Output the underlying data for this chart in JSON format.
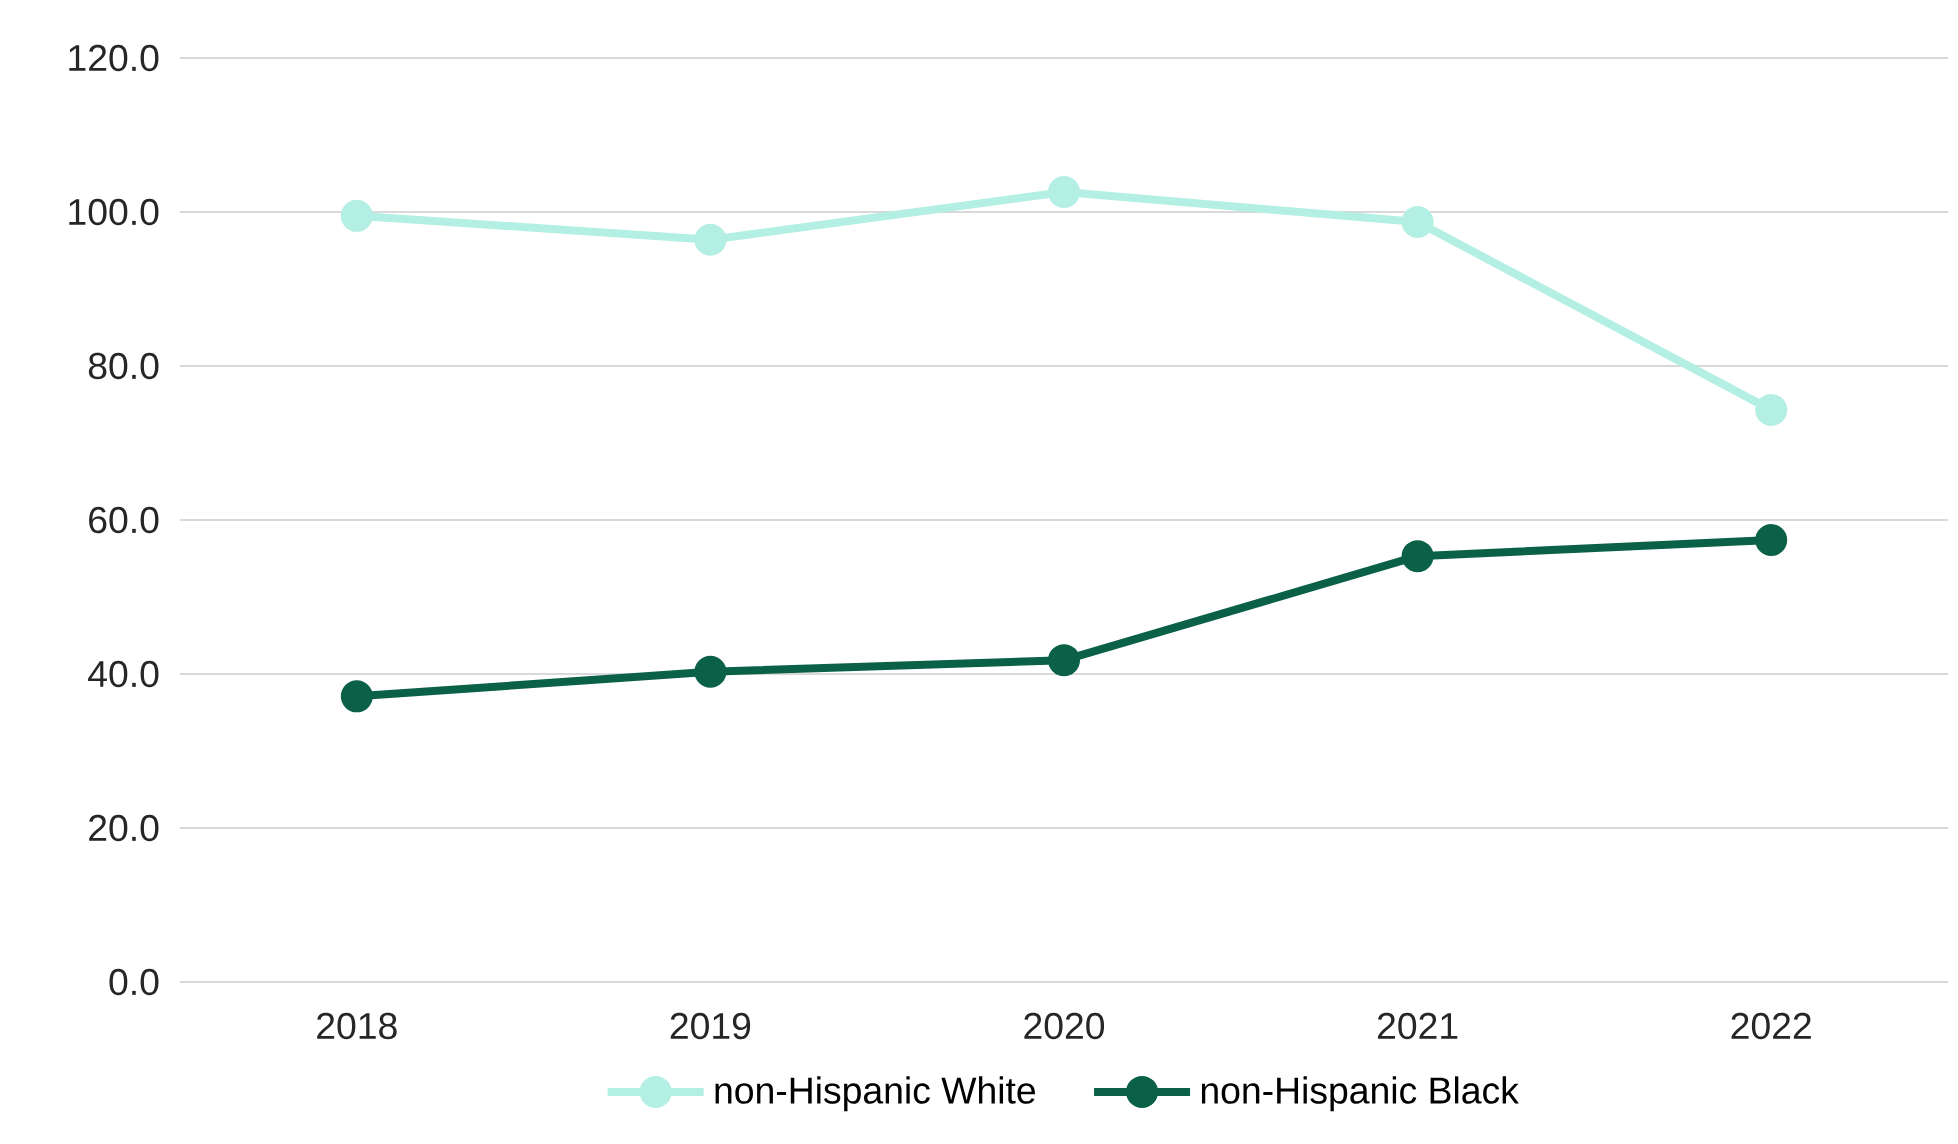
{
  "chart_data": {
    "type": "line",
    "categories": [
      "2018",
      "2019",
      "2020",
      "2021",
      "2022"
    ],
    "series": [
      {
        "name": "non-Hispanic White",
        "color": "#b3efe3",
        "values": [
          99.5,
          96.4,
          102.6,
          98.7,
          74.3
        ]
      },
      {
        "name": "non-Hispanic Black",
        "color": "#0b6148",
        "values": [
          37.1,
          40.3,
          41.8,
          55.3,
          57.4
        ]
      }
    ],
    "ylim": [
      0,
      120
    ],
    "yticks": [
      {
        "value": 0,
        "label": "0.0"
      },
      {
        "value": 20,
        "label": "20.0"
      },
      {
        "value": 40,
        "label": "40.0"
      },
      {
        "value": 60,
        "label": "60.0"
      },
      {
        "value": 80,
        "label": "80.0"
      },
      {
        "value": 100,
        "label": "100.0"
      },
      {
        "value": 120,
        "label": "120.0"
      }
    ],
    "grid": "y",
    "legend": "bottom",
    "marker": "circle",
    "line_style": "solid"
  }
}
